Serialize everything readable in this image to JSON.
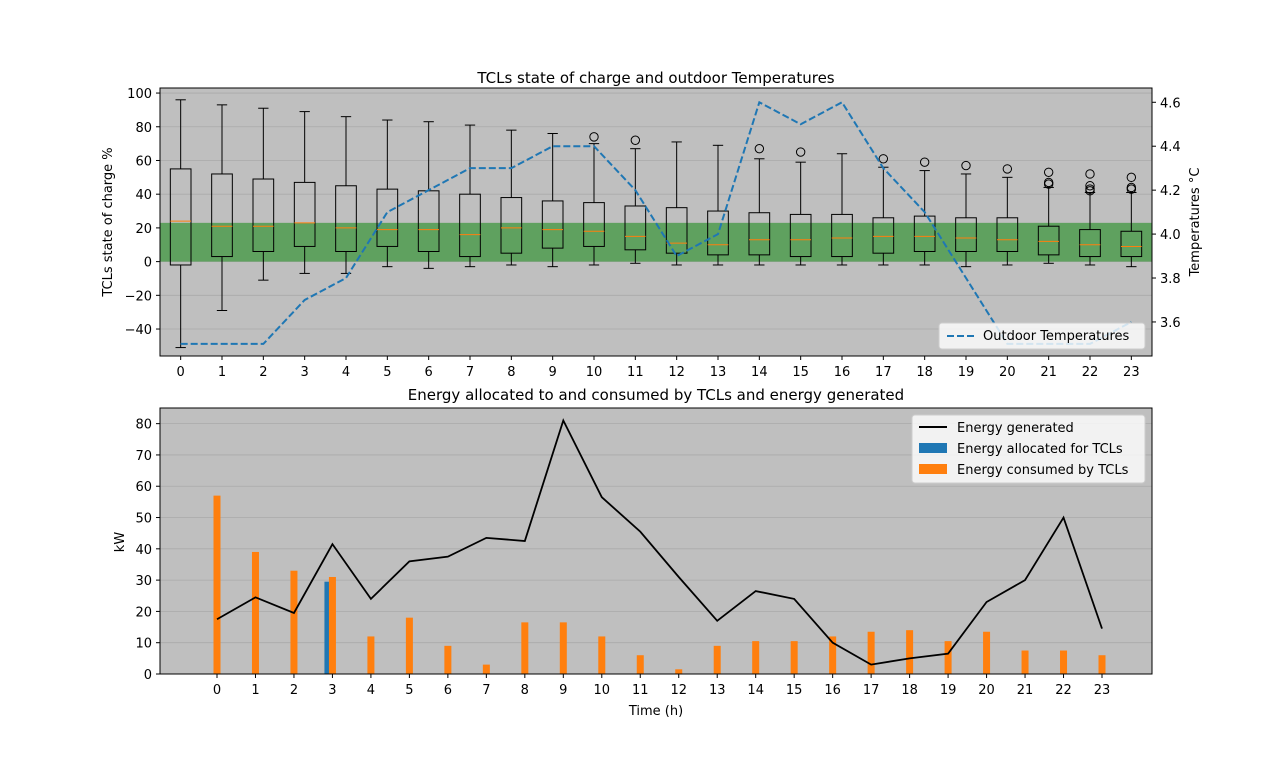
{
  "chart_data": [
    {
      "type": "box",
      "title": "TCLs state of charge and outdoor Temperatures",
      "ylabel": "TCLs state of charge %",
      "y2label": "Temperatures °C",
      "categories": [
        "0",
        "1",
        "2",
        "3",
        "4",
        "5",
        "6",
        "7",
        "8",
        "9",
        "10",
        "11",
        "12",
        "13",
        "14",
        "15",
        "16",
        "17",
        "18",
        "19",
        "20",
        "21",
        "22",
        "23"
      ],
      "ylim": [
        -56,
        103
      ],
      "y2lim": [
        3.445,
        4.665
      ],
      "yticks": [
        -40,
        -20,
        0,
        20,
        40,
        60,
        80,
        100
      ],
      "y2ticks": [
        3.6,
        3.8,
        4.0,
        4.2,
        4.4,
        4.6
      ],
      "band": {
        "from": 0,
        "to": 23,
        "color": "#5fa15f"
      },
      "boxes": [
        {
          "whislo": -51,
          "q1": -2,
          "med": 24,
          "q3": 55,
          "whishi": 96,
          "fliers": []
        },
        {
          "whislo": -29,
          "q1": 3,
          "med": 21,
          "q3": 52,
          "whishi": 93,
          "fliers": []
        },
        {
          "whislo": -11,
          "q1": 6,
          "med": 21,
          "q3": 49,
          "whishi": 91,
          "fliers": []
        },
        {
          "whislo": -7,
          "q1": 9,
          "med": 23,
          "q3": 47,
          "whishi": 89,
          "fliers": []
        },
        {
          "whislo": -7,
          "q1": 6,
          "med": 20,
          "q3": 45,
          "whishi": 86,
          "fliers": []
        },
        {
          "whislo": -3,
          "q1": 9,
          "med": 19,
          "q3": 43,
          "whishi": 84,
          "fliers": []
        },
        {
          "whislo": -4,
          "q1": 6,
          "med": 19,
          "q3": 42,
          "whishi": 83,
          "fliers": []
        },
        {
          "whislo": -3,
          "q1": 3,
          "med": 16,
          "q3": 40,
          "whishi": 81,
          "fliers": []
        },
        {
          "whislo": -2,
          "q1": 5,
          "med": 20,
          "q3": 38,
          "whishi": 78,
          "fliers": []
        },
        {
          "whislo": -3,
          "q1": 8,
          "med": 19,
          "q3": 36,
          "whishi": 76,
          "fliers": []
        },
        {
          "whislo": -2,
          "q1": 9,
          "med": 18,
          "q3": 35,
          "whishi": 70,
          "fliers": [
            74
          ]
        },
        {
          "whislo": -1,
          "q1": 7,
          "med": 15,
          "q3": 33,
          "whishi": 67,
          "fliers": [
            72
          ]
        },
        {
          "whislo": -2,
          "q1": 5,
          "med": 11,
          "q3": 32,
          "whishi": 71,
          "fliers": []
        },
        {
          "whislo": -2,
          "q1": 4,
          "med": 10,
          "q3": 30,
          "whishi": 69,
          "fliers": []
        },
        {
          "whislo": -2,
          "q1": 4,
          "med": 13,
          "q3": 29,
          "whishi": 61,
          "fliers": [
            67
          ]
        },
        {
          "whislo": -2,
          "q1": 3,
          "med": 13,
          "q3": 28,
          "whishi": 59,
          "fliers": [
            65
          ]
        },
        {
          "whislo": -2,
          "q1": 3,
          "med": 14,
          "q3": 28,
          "whishi": 64,
          "fliers": []
        },
        {
          "whislo": -2,
          "q1": 5,
          "med": 15,
          "q3": 26,
          "whishi": 56,
          "fliers": [
            61
          ]
        },
        {
          "whislo": -2,
          "q1": 6,
          "med": 15,
          "q3": 27,
          "whishi": 54,
          "fliers": [
            59
          ]
        },
        {
          "whislo": -3,
          "q1": 6,
          "med": 14,
          "q3": 26,
          "whishi": 52,
          "fliers": [
            57
          ]
        },
        {
          "whislo": -2,
          "q1": 6,
          "med": 13,
          "q3": 26,
          "whishi": 50,
          "fliers": [
            55
          ]
        },
        {
          "whislo": -1,
          "q1": 4,
          "med": 12,
          "q3": 21,
          "whishi": 44,
          "fliers": [
            46,
            47,
            53
          ]
        },
        {
          "whislo": -2,
          "q1": 3,
          "med": 10,
          "q3": 19,
          "whishi": 41,
          "fliers": [
            42,
            43,
            45,
            52
          ]
        },
        {
          "whislo": -3,
          "q1": 3,
          "med": 9,
          "q3": 18,
          "whishi": 41,
          "fliers": [
            43,
            44,
            50
          ]
        }
      ],
      "series": [
        {
          "name": "Outdoor Temperatures",
          "axis": "right",
          "style": "dashed",
          "color": "#1f77b4",
          "values": [
            3.5,
            3.5,
            3.5,
            3.7,
            3.8,
            4.1,
            4.2,
            4.3,
            4.3,
            4.4,
            4.4,
            4.2,
            3.9,
            4.0,
            4.6,
            4.5,
            4.6,
            4.3,
            4.1,
            3.8,
            3.5,
            3.5,
            3.5,
            3.6
          ]
        }
      ],
      "legend": "lower right"
    },
    {
      "type": "bar",
      "title": "Energy allocated to and consumed by TCLs and energy generated",
      "xlabel": "Time (h)",
      "ylabel": "kW",
      "categories": [
        "0",
        "1",
        "2",
        "3",
        "4",
        "5",
        "6",
        "7",
        "8",
        "9",
        "10",
        "11",
        "12",
        "13",
        "14",
        "15",
        "16",
        "17",
        "18",
        "19",
        "20",
        "21",
        "22",
        "23"
      ],
      "ylim": [
        0,
        85
      ],
      "yticks": [
        0,
        10,
        20,
        30,
        40,
        50,
        60,
        70,
        80
      ],
      "series": [
        {
          "name": "Energy generated",
          "type": "line",
          "color": "#000000",
          "values": [
            17.5,
            24.5,
            19.5,
            41.5,
            24,
            36,
            37.5,
            43.5,
            42.5,
            81,
            56.5,
            45.5,
            31,
            17,
            26.5,
            24,
            10,
            3,
            5,
            6.5,
            23,
            30,
            50,
            14.5
          ]
        },
        {
          "name": "Energy allocated for TCLs",
          "type": "bar",
          "color": "#1f77b4",
          "values": [
            0,
            0,
            0,
            29.5,
            0,
            0,
            0,
            0,
            0,
            0,
            0,
            0,
            0,
            0,
            0,
            0,
            0,
            0,
            0,
            0,
            0,
            0,
            0,
            0
          ]
        },
        {
          "name": "Energy consumed by TCLs",
          "type": "bar",
          "color": "#ff7f0e",
          "values": [
            57,
            39,
            33,
            31,
            12,
            18,
            9,
            3,
            16.5,
            16.5,
            12,
            6,
            1.5,
            9,
            10.5,
            10.5,
            12,
            13.5,
            14,
            10.5,
            13.5,
            7.5,
            7.5,
            6
          ]
        }
      ],
      "legend": "upper right"
    }
  ]
}
